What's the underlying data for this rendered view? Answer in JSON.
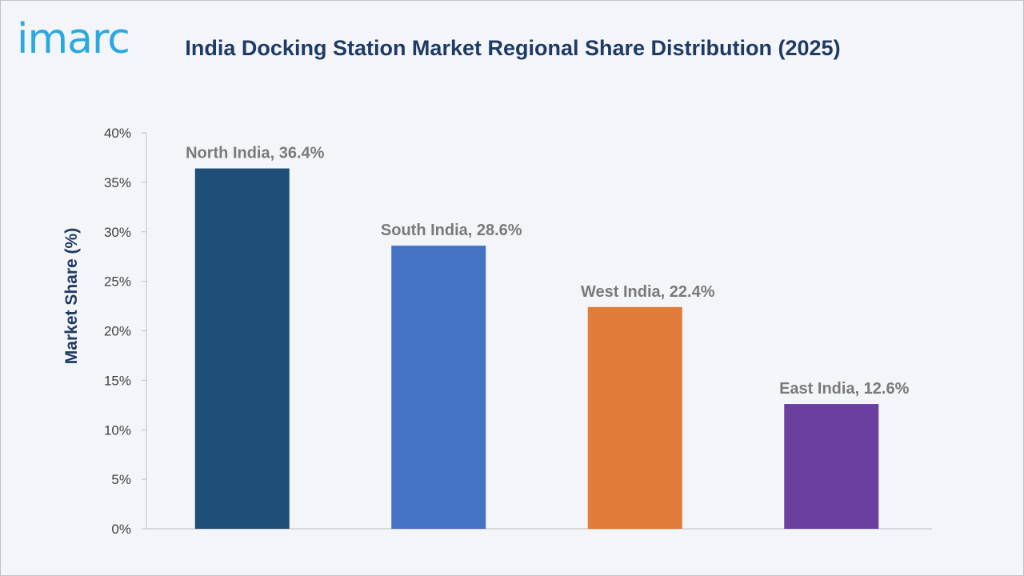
{
  "brand": {
    "logo_text": "imarc",
    "logo_color": "#2aa8e0"
  },
  "chart_data": {
    "type": "bar",
    "title": "India Docking Station Market Regional Share Distribution (2025)",
    "xlabel": "",
    "ylabel": "Market Share (%)",
    "ylim": [
      0,
      40
    ],
    "yticks": [
      "0%",
      "5%",
      "10%",
      "15%",
      "20%",
      "25%",
      "30%",
      "35%",
      "40%"
    ],
    "categories": [
      "North India",
      "South India",
      "West India",
      "East India"
    ],
    "values": [
      36.4,
      28.6,
      22.4,
      12.6
    ],
    "data_labels": [
      "North India, 36.4%",
      "South India, 28.6%",
      "West India, 22.4%",
      "East India, 12.6%"
    ],
    "colors": [
      "#1f4e79",
      "#4472c4",
      "#e07b39",
      "#6b3fa0"
    ],
    "grid": false,
    "legend": "none"
  }
}
